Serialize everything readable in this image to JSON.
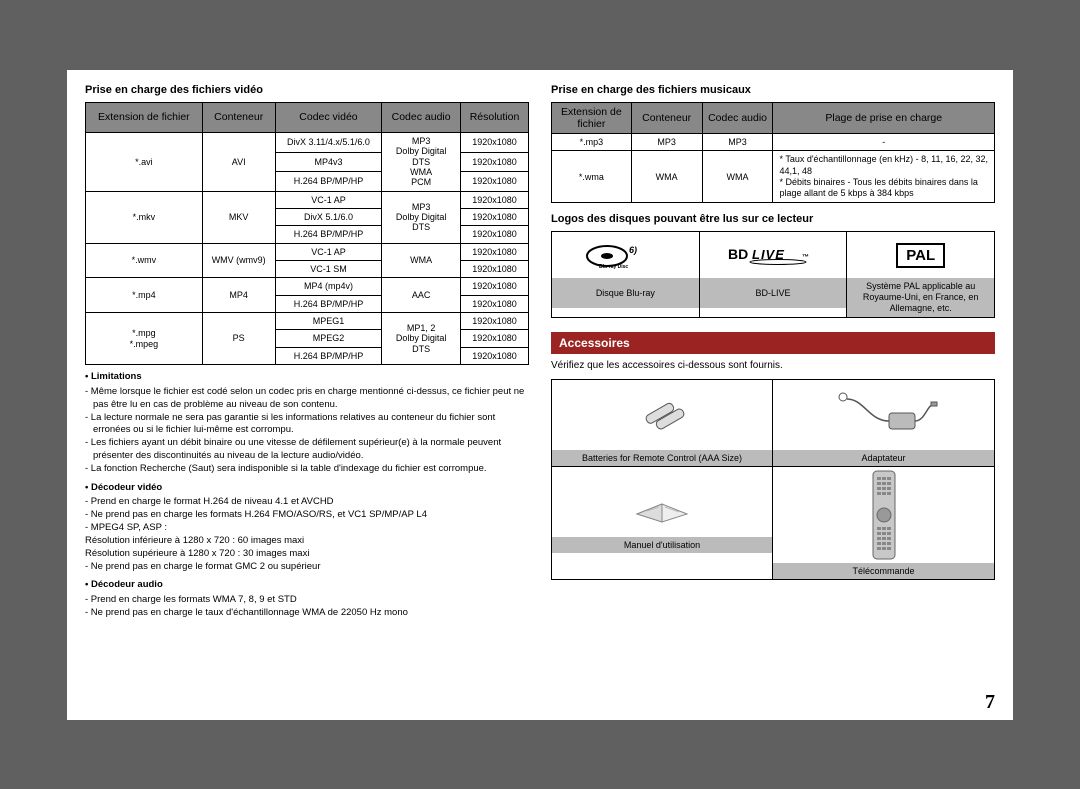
{
  "page_number": "7",
  "colors": {
    "page_bg": "#ffffff",
    "outer_bg": "#606060",
    "header_bg": "#888888",
    "caption_bg": "#bbbbbb",
    "accent": "#9b2423"
  },
  "left": {
    "title": "Prise en charge des fichiers vidéo",
    "headers": [
      "Extension de fichier",
      "Conteneur",
      "Codec vidéo",
      "Codec audio",
      "Résolution"
    ],
    "groups": [
      {
        "ext": "*.avi",
        "container": "AVI",
        "audio": "MP3\nDolby Digital\nDTS\nWMA\nPCM",
        "rows": [
          {
            "vcodec": "DivX 3.11/4.x/5.1/6.0",
            "res": "1920x1080"
          },
          {
            "vcodec": "MP4v3",
            "res": "1920x1080"
          },
          {
            "vcodec": "H.264 BP/MP/HP",
            "res": "1920x1080"
          }
        ]
      },
      {
        "ext": "*.mkv",
        "container": "MKV",
        "audio": "MP3\nDolby Digital\nDTS",
        "rows": [
          {
            "vcodec": "VC-1 AP",
            "res": "1920x1080"
          },
          {
            "vcodec": "DivX 5.1/6.0",
            "res": "1920x1080"
          },
          {
            "vcodec": "H.264 BP/MP/HP",
            "res": "1920x1080"
          }
        ]
      },
      {
        "ext": "*.wmv",
        "container": "WMV (wmv9)",
        "audio": "WMA",
        "rows": [
          {
            "vcodec": "VC-1 AP",
            "res": "1920x1080"
          },
          {
            "vcodec": "VC-1 SM",
            "res": "1920x1080"
          }
        ]
      },
      {
        "ext": "*.mp4",
        "container": "MP4",
        "audio": "AAC",
        "rows": [
          {
            "vcodec": "MP4 (mp4v)",
            "res": "1920x1080"
          },
          {
            "vcodec": "H.264 BP/MP/HP",
            "res": "1920x1080"
          }
        ]
      },
      {
        "ext": "*.mpg\n*.mpeg",
        "container": "PS",
        "audio": "MP1, 2\nDolby Digital\nDTS",
        "rows": [
          {
            "vcodec": "MPEG1",
            "res": "1920x1080"
          },
          {
            "vcodec": "MPEG2",
            "res": "1920x1080"
          },
          {
            "vcodec": "H.264 BP/MP/HP",
            "res": "1920x1080"
          }
        ]
      }
    ],
    "limitations_title": "• Limitations",
    "limitations": [
      "- Même lorsque le fichier est codé selon un codec pris en charge mentionné ci-dessus, ce fichier peut ne pas être lu en cas de problème au niveau de son contenu.",
      "- La lecture normale ne sera pas garantie si les informations relatives au conteneur du fichier sont erronées ou si le fichier lui-même est corrompu.",
      "- Les fichiers ayant un débit binaire ou une vitesse de défilement supérieur(e) à la normale peuvent présenter des discontinuités au niveau de la lecture audio/vidéo.",
      "- La fonction Recherche (Saut) sera indisponible si la table d'indexage du fichier est corrompue."
    ],
    "vdec_title": "• Décodeur vidéo",
    "vdec": [
      "- Prend en charge le format H.264 de niveau 4.1 et AVCHD",
      "- Ne prend pas en charge les formats H.264 FMO/ASO/RS, et VC1 SP/MP/AP L4",
      "- MPEG4 SP, ASP :",
      "  Résolution inférieure à 1280 x 720 : 60 images maxi",
      "  Résolution supérieure à 1280 x 720 : 30 images maxi",
      "- Ne prend pas en charge le format GMC 2 ou supérieur"
    ],
    "adec_title": "• Décodeur audio",
    "adec": [
      "- Prend en charge les formats WMA 7, 8, 9 et STD",
      "- Ne prend pas en charge le taux d'échantillonnage WMA de 22050 Hz mono"
    ]
  },
  "right": {
    "music_title": "Prise en charge des fichiers musicaux",
    "music_headers": [
      "Extension de fichier",
      "Conteneur",
      "Codec audio",
      "Plage de prise en charge"
    ],
    "music_rows": [
      {
        "ext": "*.mp3",
        "container": "MP3",
        "codec": "MP3",
        "range": "-"
      },
      {
        "ext": "*.wma",
        "container": "WMA",
        "codec": "WMA",
        "range": "* Taux d'échantillonnage (en kHz) - 8, 11, 16, 22, 32, 44,1, 48\n* Débits binaires - Tous les débits binaires dans la plage allant de 5 kbps à 384 kbps"
      }
    ],
    "logos_title": "Logos des disques pouvant être lus sur ce lecteur",
    "logos": [
      {
        "name": "bluray-logo",
        "caption": "Disque Blu-ray"
      },
      {
        "name": "bdlive-logo",
        "caption": "BD-LIVE"
      },
      {
        "name": "pal-logo",
        "caption": "Système PAL applicable au Royaume-Uni, en France, en Allemagne, etc."
      }
    ],
    "accessories_band": "Accessoires",
    "accessories_intro": "Vérifiez que les accessoires ci-dessous sont fournis.",
    "accessories": [
      {
        "name": "batteries-icon",
        "caption": "Batteries for Remote Control (AAA Size)"
      },
      {
        "name": "adapter-icon",
        "caption": "Adaptateur"
      },
      {
        "name": "manual-icon",
        "caption": "Manuel d'utilisation"
      },
      {
        "name": "remote-icon",
        "caption": "Télécommande"
      }
    ]
  }
}
